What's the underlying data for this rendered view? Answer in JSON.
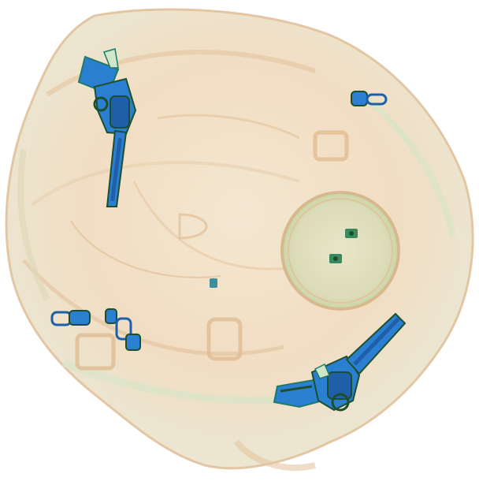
{
  "image": {
    "kind": "x-ray baggage scan",
    "background_color": "#ffffff",
    "palette": {
      "organic": "#f2c9a0",
      "organic_dark": "#d9a374",
      "mixed": "#cfe6c8",
      "mixed_dark": "#a8cfa6",
      "metal": "#2a7fd0",
      "metal_dark": "#1f5ea8",
      "metal_outline": "#1f7a6a",
      "dense": "#1d4f2f"
    },
    "objects": [
      {
        "name": "bag",
        "label": ""
      },
      {
        "name": "revolver",
        "label": ""
      },
      {
        "name": "revolver",
        "label": ""
      },
      {
        "name": "round-container",
        "label": ""
      },
      {
        "name": "zipper-pull",
        "label": ""
      },
      {
        "name": "zipper-pull",
        "label": ""
      },
      {
        "name": "zipper-pull",
        "label": ""
      },
      {
        "name": "buckle",
        "label": ""
      },
      {
        "name": "buckle",
        "label": ""
      },
      {
        "name": "buckle",
        "label": ""
      }
    ]
  }
}
